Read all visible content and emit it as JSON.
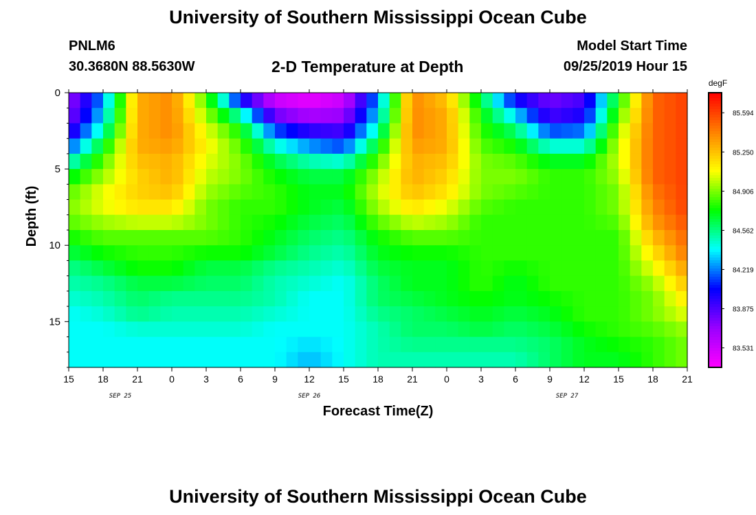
{
  "header": {
    "title": "University of Southern Mississippi Ocean Cube",
    "station": "PNLM6",
    "coordinates": "30.3680N 88.5630W",
    "plot_title": "2-D Temperature at Depth",
    "model_start_label": "Model Start Time",
    "model_start_value": "09/25/2019 Hour 15"
  },
  "footer": {
    "title": "University of Southern Mississippi Ocean Cube"
  },
  "chart_data": {
    "type": "heatmap",
    "title": "2-D Temperature at Depth",
    "xlabel": "Forecast Time(Z)",
    "ylabel": "Depth (ft)",
    "x_range_hours": [
      0,
      54
    ],
    "y_range_ft": [
      0,
      18
    ],
    "y_inverted": true,
    "x_tick_labels": [
      "15",
      "18",
      "21",
      "0",
      "3",
      "6",
      "9",
      "12",
      "15",
      "18",
      "21",
      "0",
      "3",
      "6",
      "9",
      "12",
      "15",
      "18",
      "21"
    ],
    "y_ticks": [
      0,
      5,
      10,
      15
    ],
    "y_tick_labels": [
      "0",
      "5",
      "10",
      "15"
    ],
    "date_labels": [
      {
        "text": "SEP 25",
        "at_hour": 4.5
      },
      {
        "text": "SEP 26",
        "at_hour": 21
      },
      {
        "text": "SEP 27",
        "at_hour": 43.5
      }
    ],
    "colorbar": {
      "unit": "degF",
      "labels": [
        "85.594",
        "85.250",
        "84.906",
        "84.562",
        "84.219",
        "83.875",
        "83.531"
      ],
      "range": [
        83.36,
        85.77
      ],
      "colors": [
        "#ff00ff",
        "#9900ff",
        "#0000ff",
        "#00ffff",
        "#00ff00",
        "#ffff00",
        "#ff8000",
        "#ff0000"
      ]
    },
    "depths_ft": [
      0,
      1,
      2,
      3,
      4,
      5,
      6,
      7,
      8,
      9,
      10,
      11,
      12,
      13,
      14,
      15,
      16,
      17,
      18
    ],
    "times_h": [
      0,
      3,
      6,
      9,
      12,
      15,
      18,
      21,
      24,
      27,
      30,
      33,
      36,
      39,
      42,
      45,
      48,
      51,
      54
    ],
    "temperature_degF": [
      [
        83.7,
        84.2,
        85.3,
        85.4,
        84.8,
        83.8,
        83.5,
        83.4,
        83.5,
        84.2,
        85.4,
        85.2,
        84.6,
        83.9,
        83.8,
        83.9,
        84.7,
        85.5,
        85.6
      ],
      [
        83.7,
        84.3,
        85.3,
        85.4,
        84.9,
        84.3,
        83.6,
        83.5,
        83.6,
        84.3,
        85.4,
        85.3,
        84.7,
        84.2,
        83.8,
        83.9,
        84.8,
        85.5,
        85.6
      ],
      [
        83.8,
        84.4,
        85.3,
        85.4,
        85.0,
        84.7,
        84.0,
        83.8,
        83.8,
        84.4,
        85.4,
        85.3,
        84.8,
        84.5,
        84.0,
        84.1,
        84.9,
        85.5,
        85.6
      ],
      [
        84.0,
        84.6,
        85.3,
        85.4,
        85.1,
        84.8,
        84.3,
        84.1,
        84.0,
        84.6,
        85.4,
        85.3,
        84.8,
        84.7,
        84.3,
        84.3,
        85.0,
        85.5,
        85.6
      ],
      [
        84.3,
        84.8,
        85.3,
        85.3,
        85.1,
        84.9,
        84.6,
        84.4,
        84.3,
        84.8,
        85.3,
        85.3,
        84.9,
        84.8,
        84.6,
        84.6,
        85.0,
        85.5,
        85.6
      ],
      [
        84.6,
        84.9,
        85.2,
        85.3,
        85.0,
        84.9,
        84.7,
        84.6,
        84.6,
        84.9,
        85.3,
        85.2,
        84.9,
        84.9,
        84.8,
        84.8,
        85.0,
        85.5,
        85.6
      ],
      [
        84.8,
        85.0,
        85.2,
        85.3,
        85.0,
        84.9,
        84.8,
        84.7,
        84.7,
        85.0,
        85.3,
        85.2,
        84.9,
        84.9,
        84.8,
        84.8,
        84.9,
        85.5,
        85.6
      ],
      [
        84.9,
        85.1,
        85.2,
        85.2,
        84.9,
        84.8,
        84.8,
        84.7,
        84.7,
        85.0,
        85.2,
        85.1,
        84.9,
        84.8,
        84.8,
        84.8,
        84.9,
        85.4,
        85.6
      ],
      [
        84.9,
        85.0,
        85.1,
        85.1,
        84.9,
        84.8,
        84.8,
        84.7,
        84.6,
        84.9,
        85.1,
        85.0,
        84.8,
        84.8,
        84.8,
        84.8,
        84.9,
        85.4,
        85.6
      ],
      [
        84.8,
        84.9,
        84.9,
        84.9,
        84.9,
        84.8,
        84.7,
        84.6,
        84.6,
        84.8,
        84.9,
        84.9,
        84.8,
        84.8,
        84.8,
        84.8,
        84.8,
        85.3,
        85.5
      ],
      [
        84.7,
        84.8,
        84.8,
        84.8,
        84.8,
        84.8,
        84.7,
        84.6,
        84.5,
        84.7,
        84.8,
        84.8,
        84.8,
        84.8,
        84.8,
        84.8,
        84.8,
        85.2,
        85.5
      ],
      [
        84.6,
        84.7,
        84.8,
        84.8,
        84.7,
        84.7,
        84.6,
        84.5,
        84.5,
        84.7,
        84.7,
        84.7,
        84.8,
        84.8,
        84.8,
        84.8,
        84.8,
        85.1,
        85.4
      ],
      [
        84.5,
        84.6,
        84.7,
        84.7,
        84.6,
        84.6,
        84.5,
        84.5,
        84.4,
        84.6,
        84.7,
        84.7,
        84.8,
        84.7,
        84.8,
        84.8,
        84.8,
        85.0,
        85.3
      ],
      [
        84.5,
        84.5,
        84.6,
        84.6,
        84.6,
        84.6,
        84.5,
        84.4,
        84.4,
        84.6,
        84.7,
        84.7,
        84.8,
        84.7,
        84.8,
        84.8,
        84.8,
        84.9,
        85.2
      ],
      [
        84.4,
        84.5,
        84.6,
        84.5,
        84.5,
        84.5,
        84.5,
        84.4,
        84.4,
        84.6,
        84.6,
        84.7,
        84.7,
        84.7,
        84.7,
        84.8,
        84.8,
        84.9,
        85.1
      ],
      [
        84.4,
        84.4,
        84.5,
        84.5,
        84.5,
        84.5,
        84.4,
        84.4,
        84.4,
        84.5,
        84.6,
        84.6,
        84.7,
        84.6,
        84.7,
        84.8,
        84.8,
        84.9,
        85.0
      ],
      [
        84.4,
        84.4,
        84.4,
        84.4,
        84.4,
        84.4,
        84.4,
        84.4,
        84.4,
        84.5,
        84.6,
        84.6,
        84.6,
        84.6,
        84.6,
        84.7,
        84.8,
        84.8,
        84.9
      ],
      [
        84.4,
        84.4,
        84.4,
        84.4,
        84.4,
        84.4,
        84.4,
        84.3,
        84.4,
        84.5,
        84.5,
        84.5,
        84.5,
        84.5,
        84.6,
        84.7,
        84.7,
        84.8,
        84.9
      ],
      [
        84.4,
        84.4,
        84.4,
        84.4,
        84.4,
        84.4,
        84.4,
        84.3,
        84.4,
        84.5,
        84.5,
        84.5,
        84.5,
        84.5,
        84.6,
        84.7,
        84.7,
        84.8,
        84.9
      ]
    ]
  }
}
